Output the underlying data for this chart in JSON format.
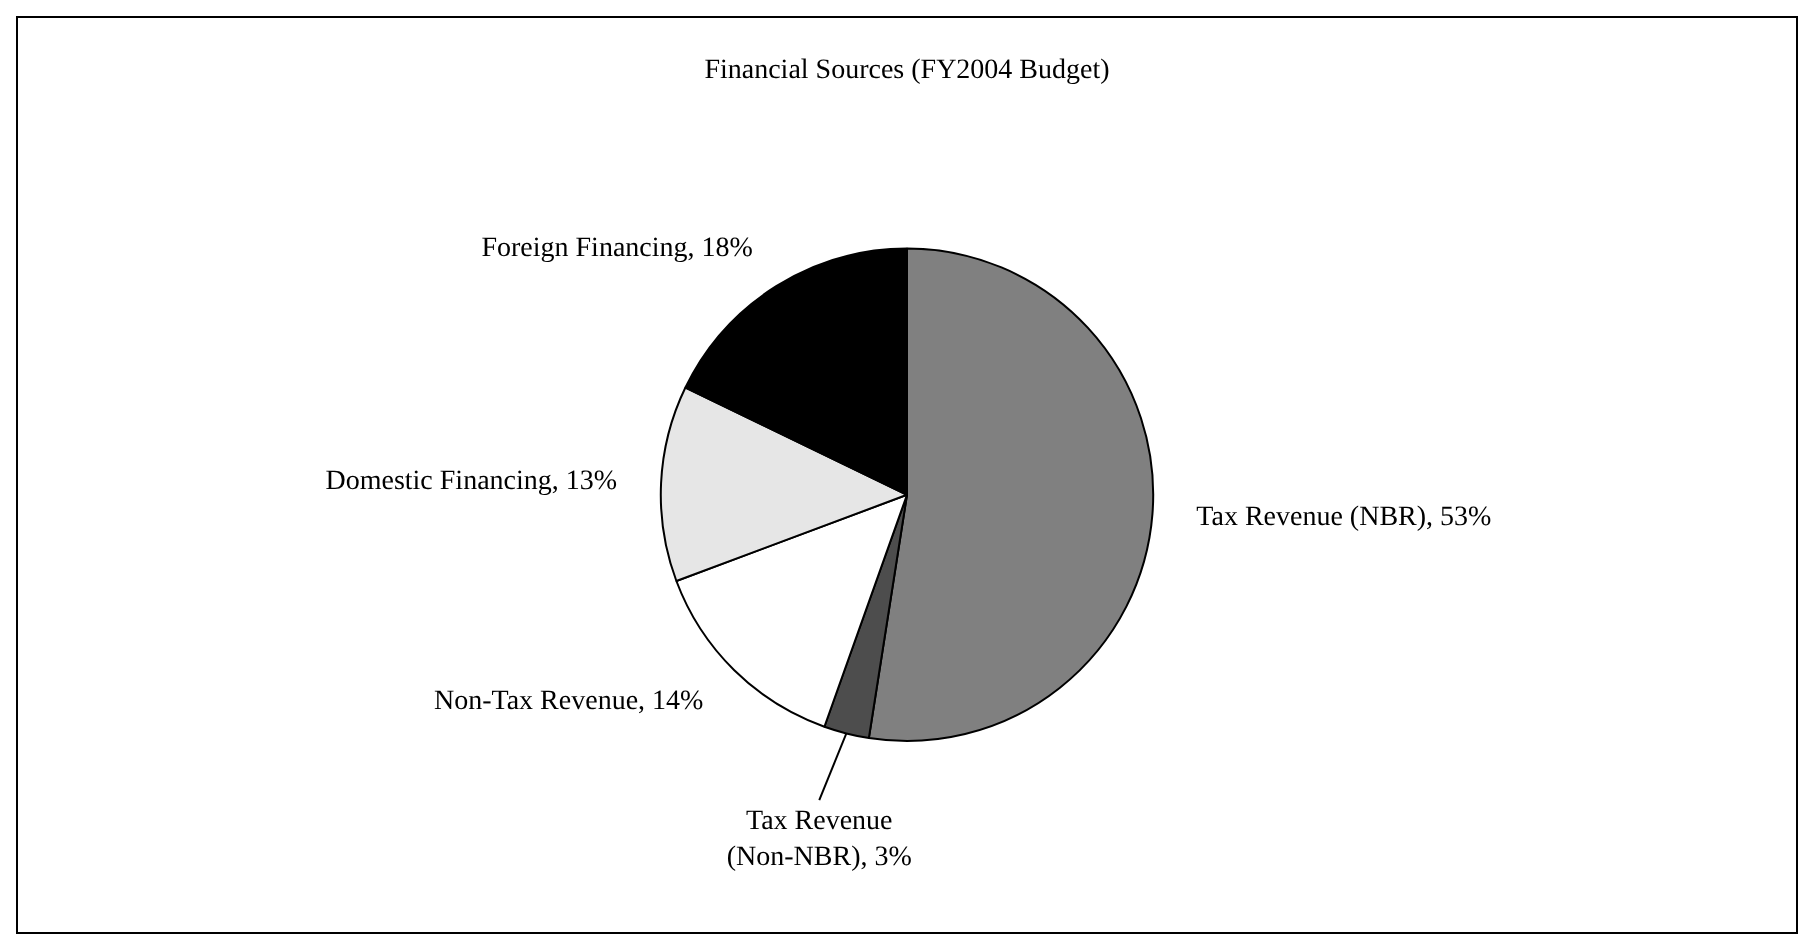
{
  "chart_data": {
    "type": "pie",
    "title": "Financial Sources (FY2004 Budget)",
    "categories": [
      "Tax Revenue (NBR)",
      "Tax Revenue (Non-NBR)",
      "Non-Tax Revenue",
      "Domestic Financing",
      "Foreign Financing"
    ],
    "values": [
      53,
      3,
      14,
      13,
      18
    ],
    "value_labels": [
      "53%",
      "3%",
      "14%",
      "13%",
      "18%"
    ],
    "colors": [
      "#808080",
      "#4d4d4d",
      "#ffffff",
      "#e6e6e6",
      "#000000"
    ],
    "legend": false
  }
}
